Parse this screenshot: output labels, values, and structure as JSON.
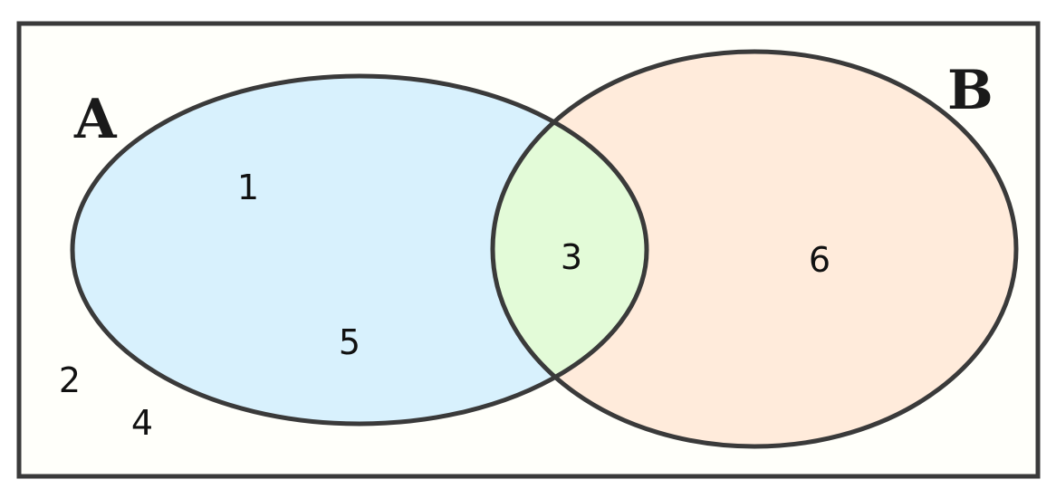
{
  "venn": {
    "sets": [
      {
        "name": "A",
        "fill": "#d8f1fd"
      },
      {
        "name": "B",
        "fill": "#ffebdb"
      }
    ],
    "intersection_fill": "#e3fbd8",
    "background_fill": "#fffffa",
    "outline_color": "#3a3a3a",
    "elements": {
      "only_a": [
        "1",
        "5"
      ],
      "a_and_b": [
        "3"
      ],
      "only_b": [
        "6"
      ],
      "outside": [
        "2",
        "4"
      ]
    }
  }
}
